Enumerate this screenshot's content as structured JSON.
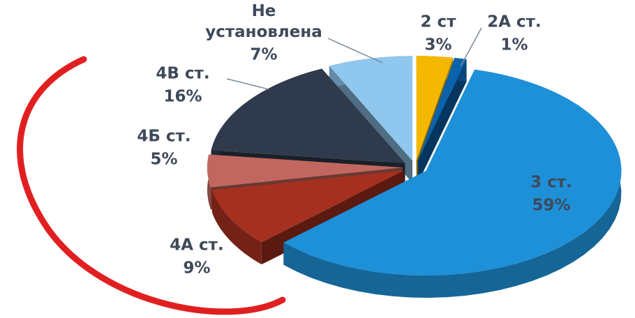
{
  "chart_data": {
    "type": "pie",
    "categories": [
      "2 ст",
      "2А ст.",
      "3 ст.",
      "4А ст.",
      "4Б ст.",
      "4В ст.",
      "Не установлена"
    ],
    "values": [
      3,
      1,
      59,
      9,
      5,
      16,
      7
    ],
    "value_labels": [
      "3%",
      "1%",
      "59%",
      "9%",
      "5%",
      "16%",
      "7%"
    ],
    "colors": [
      "#f5b800",
      "#0b62ad",
      "#1e90d8",
      "#a6301f",
      "#c2675f",
      "#2f3b4c",
      "#8fc7ee"
    ]
  }
}
